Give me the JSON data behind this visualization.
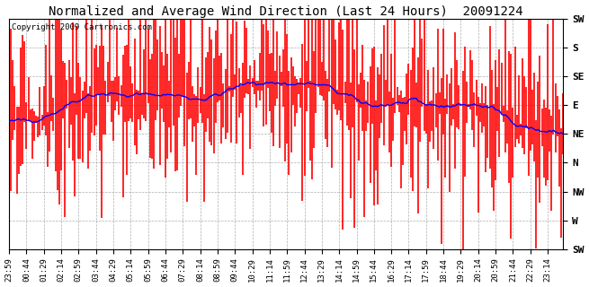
{
  "title": "Normalized and Average Wind Direction (Last 24 Hours)  20091224",
  "copyright": "Copyright 2009 Cartronics.com",
  "yticks_labels": [
    "SW",
    "S",
    "SE",
    "E",
    "NE",
    "N",
    "NW",
    "W",
    "SW"
  ],
  "yticks_values": [
    1.0,
    0.875,
    0.75,
    0.625,
    0.5,
    0.375,
    0.25,
    0.125,
    0.0
  ],
  "background_color": "#ffffff",
  "plot_bg_color": "#ffffff",
  "grid_color": "#999999",
  "bar_color": "#ff0000",
  "line_color": "#0000ff",
  "n_points": 288,
  "seed": 42,
  "title_fontsize": 10,
  "label_fontsize": 8,
  "tick_fontsize": 6.5,
  "x_tick_every": 9
}
